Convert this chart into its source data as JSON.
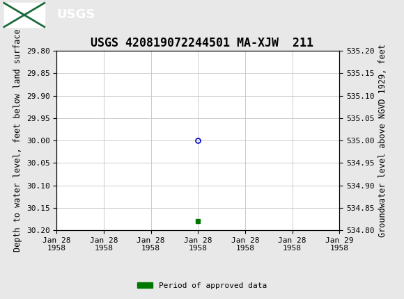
{
  "title": "USGS 420819072244501 MA-XJW  211",
  "ylabel_left": "Depth to water level, feet below land surface",
  "ylabel_right": "Groundwater level above NGVD 1929, feet",
  "ylim_left_top": 29.8,
  "ylim_left_bottom": 30.2,
  "ylim_right_top": 535.2,
  "ylim_right_bottom": 534.8,
  "left_yticks": [
    29.8,
    29.85,
    29.9,
    29.95,
    30.0,
    30.05,
    30.1,
    30.15,
    30.2
  ],
  "right_yticks": [
    535.2,
    535.15,
    535.1,
    535.05,
    535.0,
    534.95,
    534.9,
    534.85,
    534.8
  ],
  "x_tick_hours": [
    0,
    4,
    8,
    12,
    16,
    20,
    24
  ],
  "x_tick_labels": [
    "Jan 28\n1958",
    "Jan 28\n1958",
    "Jan 28\n1958",
    "Jan 28\n1958",
    "Jan 28\n1958",
    "Jan 28\n1958",
    "Jan 29\n1958"
  ],
  "data_point_hour": 12,
  "data_point_y": 30.0,
  "data_point_color": "#0000cc",
  "data_point_marker_size": 5,
  "green_marker_hour": 12,
  "green_marker_y": 30.18,
  "green_marker_color": "#007700",
  "green_marker_size": 4,
  "header_bg_color": "#1a6b3c",
  "fig_bg_color": "#e8e8e8",
  "plot_bg_color": "#ffffff",
  "grid_color": "#cccccc",
  "legend_label": "Period of approved data",
  "legend_color": "#007700",
  "font_family": "monospace",
  "title_fontsize": 12,
  "tick_fontsize": 8,
  "label_fontsize": 8.5
}
